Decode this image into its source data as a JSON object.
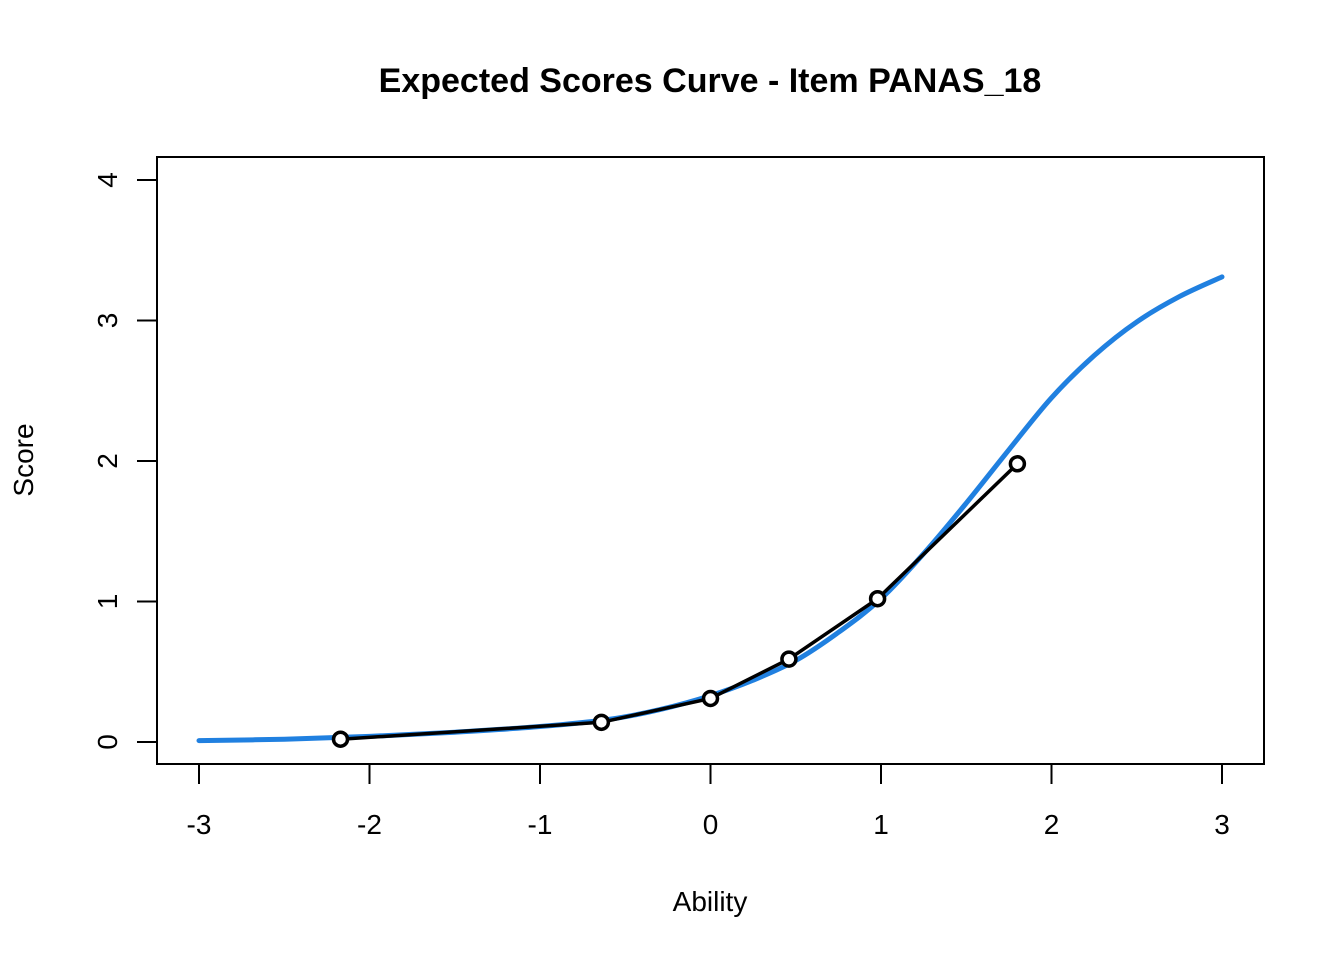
{
  "chart_data": {
    "type": "line",
    "title": "Expected Scores Curve - Item  PANAS_18",
    "xlabel": "Ability",
    "ylabel": "Score",
    "xlim": [
      -3,
      3
    ],
    "ylim": [
      0,
      4
    ],
    "x_ticks": [
      -3,
      -2,
      -1,
      0,
      1,
      2,
      3
    ],
    "y_ticks": [
      0,
      1,
      2,
      3,
      4
    ],
    "x_tick_labels": [
      "-3",
      "-2",
      "-1",
      "0",
      "1",
      "2",
      "3"
    ],
    "y_tick_labels": [
      "0",
      "1",
      "2",
      "3",
      "4"
    ],
    "grid": false,
    "legend": "none",
    "series": [
      {
        "kind": "curve",
        "color": "#2080E0",
        "x": [
          -3.0,
          -2.5,
          -2.0,
          -1.5,
          -1.0,
          -0.6,
          -0.3,
          0.0,
          0.25,
          0.5,
          0.75,
          1.0,
          1.25,
          1.5,
          1.75,
          2.0,
          2.25,
          2.5,
          2.75,
          3.0
        ],
        "y": [
          0.01,
          0.02,
          0.04,
          0.07,
          0.11,
          0.16,
          0.23,
          0.33,
          0.44,
          0.58,
          0.78,
          1.02,
          1.34,
          1.7,
          2.08,
          2.45,
          2.75,
          2.99,
          3.17,
          3.31
        ]
      },
      {
        "kind": "points",
        "color": "#000000",
        "x": [
          -2.17,
          -0.64,
          0.0,
          0.46,
          0.98,
          1.8
        ],
        "y": [
          0.02,
          0.14,
          0.31,
          0.59,
          1.02,
          1.98
        ]
      }
    ]
  }
}
